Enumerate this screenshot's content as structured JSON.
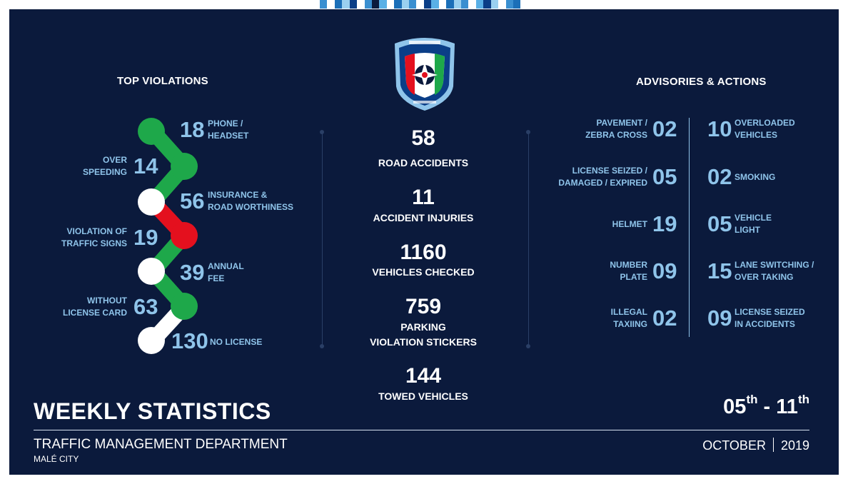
{
  "colors": {
    "background": "#0b1a3c",
    "accent": "#8fc4ea",
    "green": "#1ea84a",
    "red": "#e4101e",
    "white": "#ffffff"
  },
  "logo": {
    "icon": "police-crest-logo"
  },
  "top_violations": {
    "heading": "TOP VIOLATIONS",
    "items": [
      {
        "value": "18",
        "label": "PHONE /\nHEADSET"
      },
      {
        "value": "14",
        "label": "OVER\nSPEEDING"
      },
      {
        "value": "56",
        "label": "INSURANCE &\nROAD WORTHINESS"
      },
      {
        "value": "19",
        "label": "VIOLATION OF\nTRAFFIC SIGNS"
      },
      {
        "value": "39",
        "label": "ANNUAL\nFEE"
      },
      {
        "value": "63",
        "label": "WITHOUT\nLICENSE CARD"
      },
      {
        "value": "130",
        "label": "NO LICENSE"
      }
    ]
  },
  "center_stats": [
    {
      "value": "58",
      "label": "ROAD ACCIDENTS"
    },
    {
      "value": "11",
      "label": "ACCIDENT INJURIES"
    },
    {
      "value": "1160",
      "label": "VEHICLES CHECKED"
    },
    {
      "value": "759",
      "label": "PARKING\nVIOLATION STICKERS"
    },
    {
      "value": "144",
      "label": "TOWED VEHICLES"
    }
  ],
  "advisories": {
    "heading": "ADVISORIES & ACTIONS",
    "left": [
      {
        "value": "02",
        "label": "PAVEMENT /\nZEBRA CROSS"
      },
      {
        "value": "05",
        "label": "LICENSE SEIZED /\nDAMAGED / EXPIRED"
      },
      {
        "value": "19",
        "label": "HELMET"
      },
      {
        "value": "09",
        "label": "NUMBER\nPLATE"
      },
      {
        "value": "02",
        "label": "ILLEGAL\nTAXIING"
      }
    ],
    "right": [
      {
        "value": "10",
        "label": "OVERLOADED\nVEHICLES"
      },
      {
        "value": "02",
        "label": "SMOKING"
      },
      {
        "value": "05",
        "label": "VEHICLE\nLIGHT"
      },
      {
        "value": "15",
        "label": "LANE SWITCHING /\nOVER TAKING"
      },
      {
        "value": "09",
        "label": "LICENSE SEIZED\nIN ACCIDENTS"
      }
    ]
  },
  "footer": {
    "title": "WEEKLY STATISTICS",
    "department": "TRAFFIC MANAGEMENT DEPARTMENT",
    "city": "MALÉ CITY",
    "date_start": "05",
    "date_start_suffix": "th",
    "date_separator": "-",
    "date_end": "11",
    "date_end_suffix": "th",
    "month": "OCTOBER",
    "year": "2019"
  }
}
